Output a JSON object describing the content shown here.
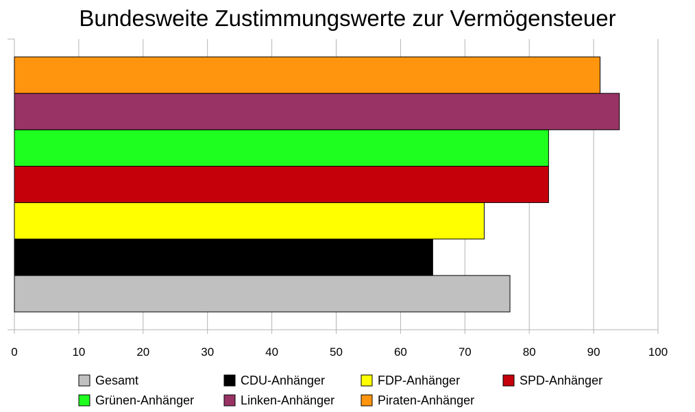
{
  "chart_data": {
    "type": "bar",
    "orientation": "horizontal",
    "title": "Bundesweite Zustimmungswerte zur Vermögensteuer",
    "xlabel": "",
    "ylabel": "",
    "xlim": [
      0,
      100
    ],
    "x_ticks": [
      0,
      10,
      20,
      30,
      40,
      50,
      60,
      70,
      80,
      90,
      100
    ],
    "grid": true,
    "legend_position": "bottom",
    "categories": [
      "Gesamt",
      "CDU-Anhänger",
      "FDP-Anhänger",
      "SPD-Anhänger",
      "Grünen-Anhänger",
      "Linken-Anhänger",
      "Piraten-Anhänger"
    ],
    "values": [
      77,
      65,
      73,
      83,
      83,
      94,
      91
    ],
    "colors": [
      "#c0c0c0",
      "#000000",
      "#ffff00",
      "#c5000b",
      "#1fff1f",
      "#993366",
      "#ff950e"
    ]
  }
}
